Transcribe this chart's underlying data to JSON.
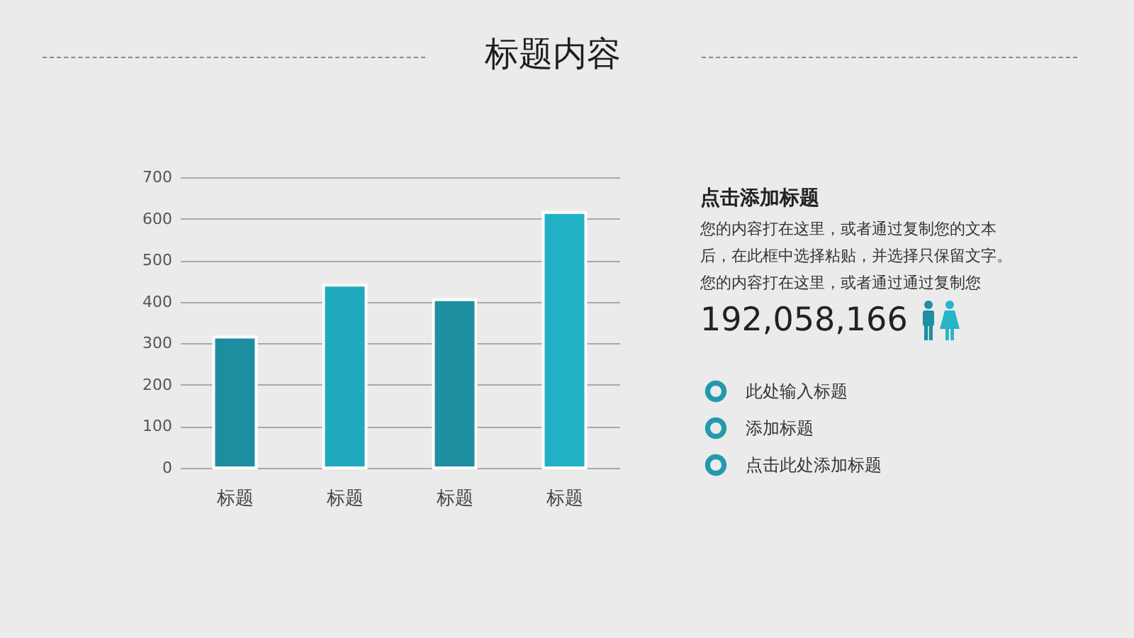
{
  "chart_data": {
    "type": "bar",
    "title": "标题内容",
    "categories": [
      "标题",
      "标题",
      "标题",
      "标题"
    ],
    "values": [
      315,
      440,
      405,
      615
    ],
    "colors": [
      "#1d8e9f",
      "#21aabf",
      "#1e90a2",
      "#22b0c5"
    ],
    "ylim": [
      0,
      700
    ],
    "yticks": [
      0,
      100,
      200,
      300,
      400,
      500,
      600,
      700
    ],
    "grid": "y",
    "annotations": [
      "点击添加标题",
      "您的内容打在这里，或者通过复制您的文本",
      "后，在此框中选择粘贴，并选择只保留文字。",
      "您的内容打在这里，或者通过通过复制您",
      "192,058,166",
      "此处输入标题",
      "添加标题",
      "点击此处添加标题"
    ]
  }
}
